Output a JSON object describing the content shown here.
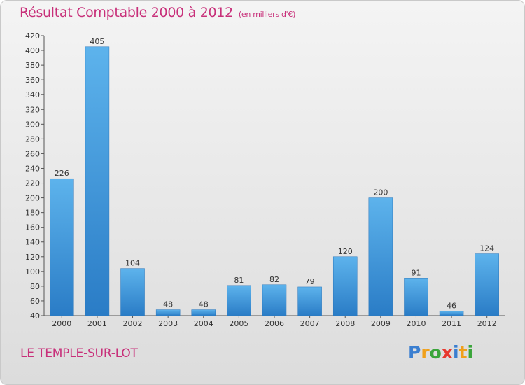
{
  "header": {
    "title": "Résultat Comptable 2000 à 2012",
    "subtitle": "(en milliers d'€)"
  },
  "footer": {
    "city": "LE TEMPLE-SUR-LOT",
    "logo_letters": [
      {
        "ch": "P",
        "color": "#3b7fd0"
      },
      {
        "ch": "r",
        "color": "#f0a01a"
      },
      {
        "ch": "o",
        "color": "#3aa53a"
      },
      {
        "ch": "x",
        "color": "#e8392f"
      },
      {
        "ch": "i",
        "color": "#3b7fd0"
      },
      {
        "ch": "t",
        "color": "#f0a01a"
      },
      {
        "ch": "i",
        "color": "#3aa53a"
      }
    ]
  },
  "chart_data": {
    "type": "bar",
    "categories": [
      "2000",
      "2001",
      "2002",
      "2003",
      "2004",
      "2005",
      "2006",
      "2007",
      "2008",
      "2009",
      "2010",
      "2011",
      "2012"
    ],
    "values": [
      226,
      405,
      104,
      48,
      48,
      81,
      82,
      79,
      120,
      200,
      91,
      46,
      124
    ],
    "ylim": [
      40,
      420
    ],
    "yticks": [
      40,
      60,
      80,
      100,
      120,
      140,
      160,
      180,
      200,
      220,
      240,
      260,
      280,
      300,
      320,
      340,
      360,
      380,
      400,
      420
    ],
    "grid": false,
    "bar_color": "#3a95dc"
  }
}
